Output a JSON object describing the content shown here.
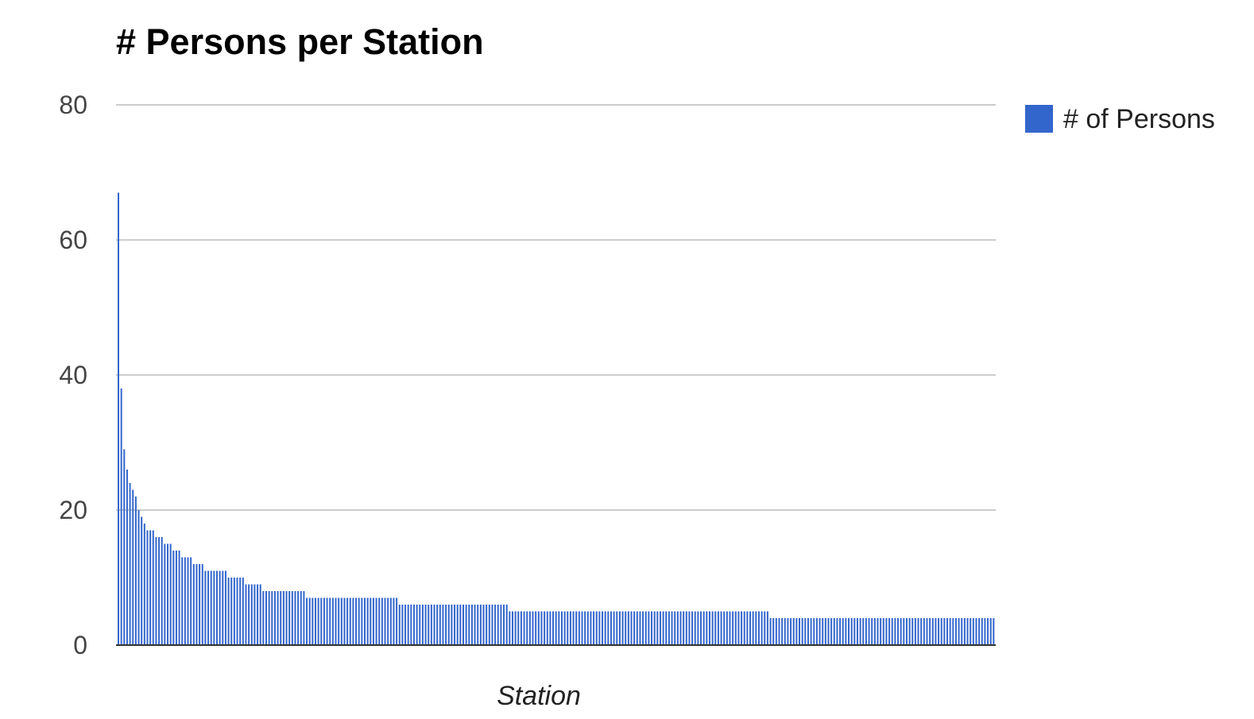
{
  "chart_data": {
    "type": "bar",
    "title": "# Persons per Station",
    "xlabel": "Station",
    "ylabel": "",
    "ylim": [
      0,
      80
    ],
    "yticks": [
      0,
      20,
      40,
      60,
      80
    ],
    "grid": true,
    "legend_position": "right",
    "series": [
      {
        "name": "# of Persons",
        "color": "#3366cc",
        "values": [
          67,
          38,
          29,
          26,
          24,
          23,
          22,
          20,
          19,
          18,
          17,
          17,
          17,
          16,
          16,
          16,
          15,
          15,
          15,
          14,
          14,
          14,
          13,
          13,
          13,
          13,
          12,
          12,
          12,
          12,
          11,
          11,
          11,
          11,
          11,
          11,
          11,
          11,
          10,
          10,
          10,
          10,
          10,
          10,
          9,
          9,
          9,
          9,
          9,
          9,
          8,
          8,
          8,
          8,
          8,
          8,
          8,
          8,
          8,
          8,
          8,
          8,
          8,
          8,
          8,
          7,
          7,
          7,
          7,
          7,
          7,
          7,
          7,
          7,
          7,
          7,
          7,
          7,
          7,
          7,
          7,
          7,
          7,
          7,
          7,
          7,
          7,
          7,
          7,
          7,
          7,
          7,
          7,
          7,
          7,
          7,
          7,
          6,
          6,
          6,
          6,
          6,
          6,
          6,
          6,
          6,
          6,
          6,
          6,
          6,
          6,
          6,
          6,
          6,
          6,
          6,
          6,
          6,
          6,
          6,
          6,
          6,
          6,
          6,
          6,
          6,
          6,
          6,
          6,
          6,
          6,
          6,
          6,
          6,
          6,
          5,
          5,
          5,
          5,
          5,
          5,
          5,
          5,
          5,
          5,
          5,
          5,
          5,
          5,
          5,
          5,
          5,
          5,
          5,
          5,
          5,
          5,
          5,
          5,
          5,
          5,
          5,
          5,
          5,
          5,
          5,
          5,
          5,
          5,
          5,
          5,
          5,
          5,
          5,
          5,
          5,
          5,
          5,
          5,
          5,
          5,
          5,
          5,
          5,
          5,
          5,
          5,
          5,
          5,
          5,
          5,
          5,
          5,
          5,
          5,
          5,
          5,
          5,
          5,
          5,
          5,
          5,
          5,
          5,
          5,
          5,
          5,
          5,
          5,
          5,
          5,
          5,
          5,
          5,
          5,
          5,
          5,
          5,
          5,
          5,
          5,
          5,
          5,
          5,
          5,
          4,
          4,
          4,
          4,
          4,
          4,
          4,
          4,
          4,
          4,
          4,
          4,
          4,
          4,
          4,
          4,
          4,
          4,
          4,
          4,
          4,
          4,
          4,
          4,
          4,
          4,
          4,
          4,
          4,
          4,
          4,
          4,
          4,
          4,
          4,
          4,
          4,
          4,
          4,
          4,
          4,
          4,
          4,
          4,
          4,
          4,
          4,
          4,
          4,
          4,
          4,
          4,
          4,
          4,
          4,
          4,
          4,
          4,
          4,
          4,
          4,
          4,
          4,
          4,
          4,
          4,
          4,
          4,
          4,
          4,
          4,
          4,
          4,
          4,
          4,
          4,
          4,
          4
        ]
      }
    ]
  }
}
